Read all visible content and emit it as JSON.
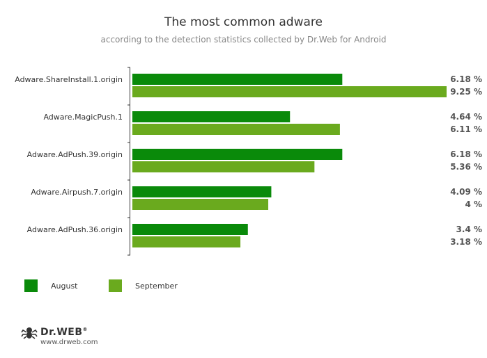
{
  "header": {
    "title": "The most common adware",
    "subtitle": "according to the detection statistics collected by Dr.Web for Android"
  },
  "chart_data": {
    "type": "bar",
    "orientation": "horizontal",
    "categories": [
      "Adware.ShareInstall.1.origin",
      "Adware.MagicPush.1",
      "Adware.AdPush.39.origin",
      "Adware.Airpush.7.origin",
      "Adware.AdPush.36.origin"
    ],
    "series": [
      {
        "name": "August",
        "color": "#0a8a0a",
        "values": [
          6.18,
          4.64,
          6.18,
          4.09,
          3.4
        ],
        "labels": [
          "6.18 %",
          "4.64 %",
          "6.18 %",
          "4.09 %",
          "3.4 %"
        ]
      },
      {
        "name": "September",
        "color": "#6aaa1e",
        "values": [
          9.25,
          6.11,
          5.36,
          4,
          3.18
        ],
        "labels": [
          "9.25 %",
          "6.11 %",
          "5.36 %",
          "4 %",
          "3.18 %"
        ]
      }
    ],
    "xlim": [
      0,
      9.25
    ],
    "legend_position": "bottom-left"
  },
  "legend": {
    "items": [
      {
        "label": "August",
        "color": "#0a8a0a"
      },
      {
        "label": "September",
        "color": "#6aaa1e"
      }
    ]
  },
  "brand": {
    "logo_text": "Dr.WEB",
    "logo_mark": "®",
    "website": "www.drweb.com"
  }
}
